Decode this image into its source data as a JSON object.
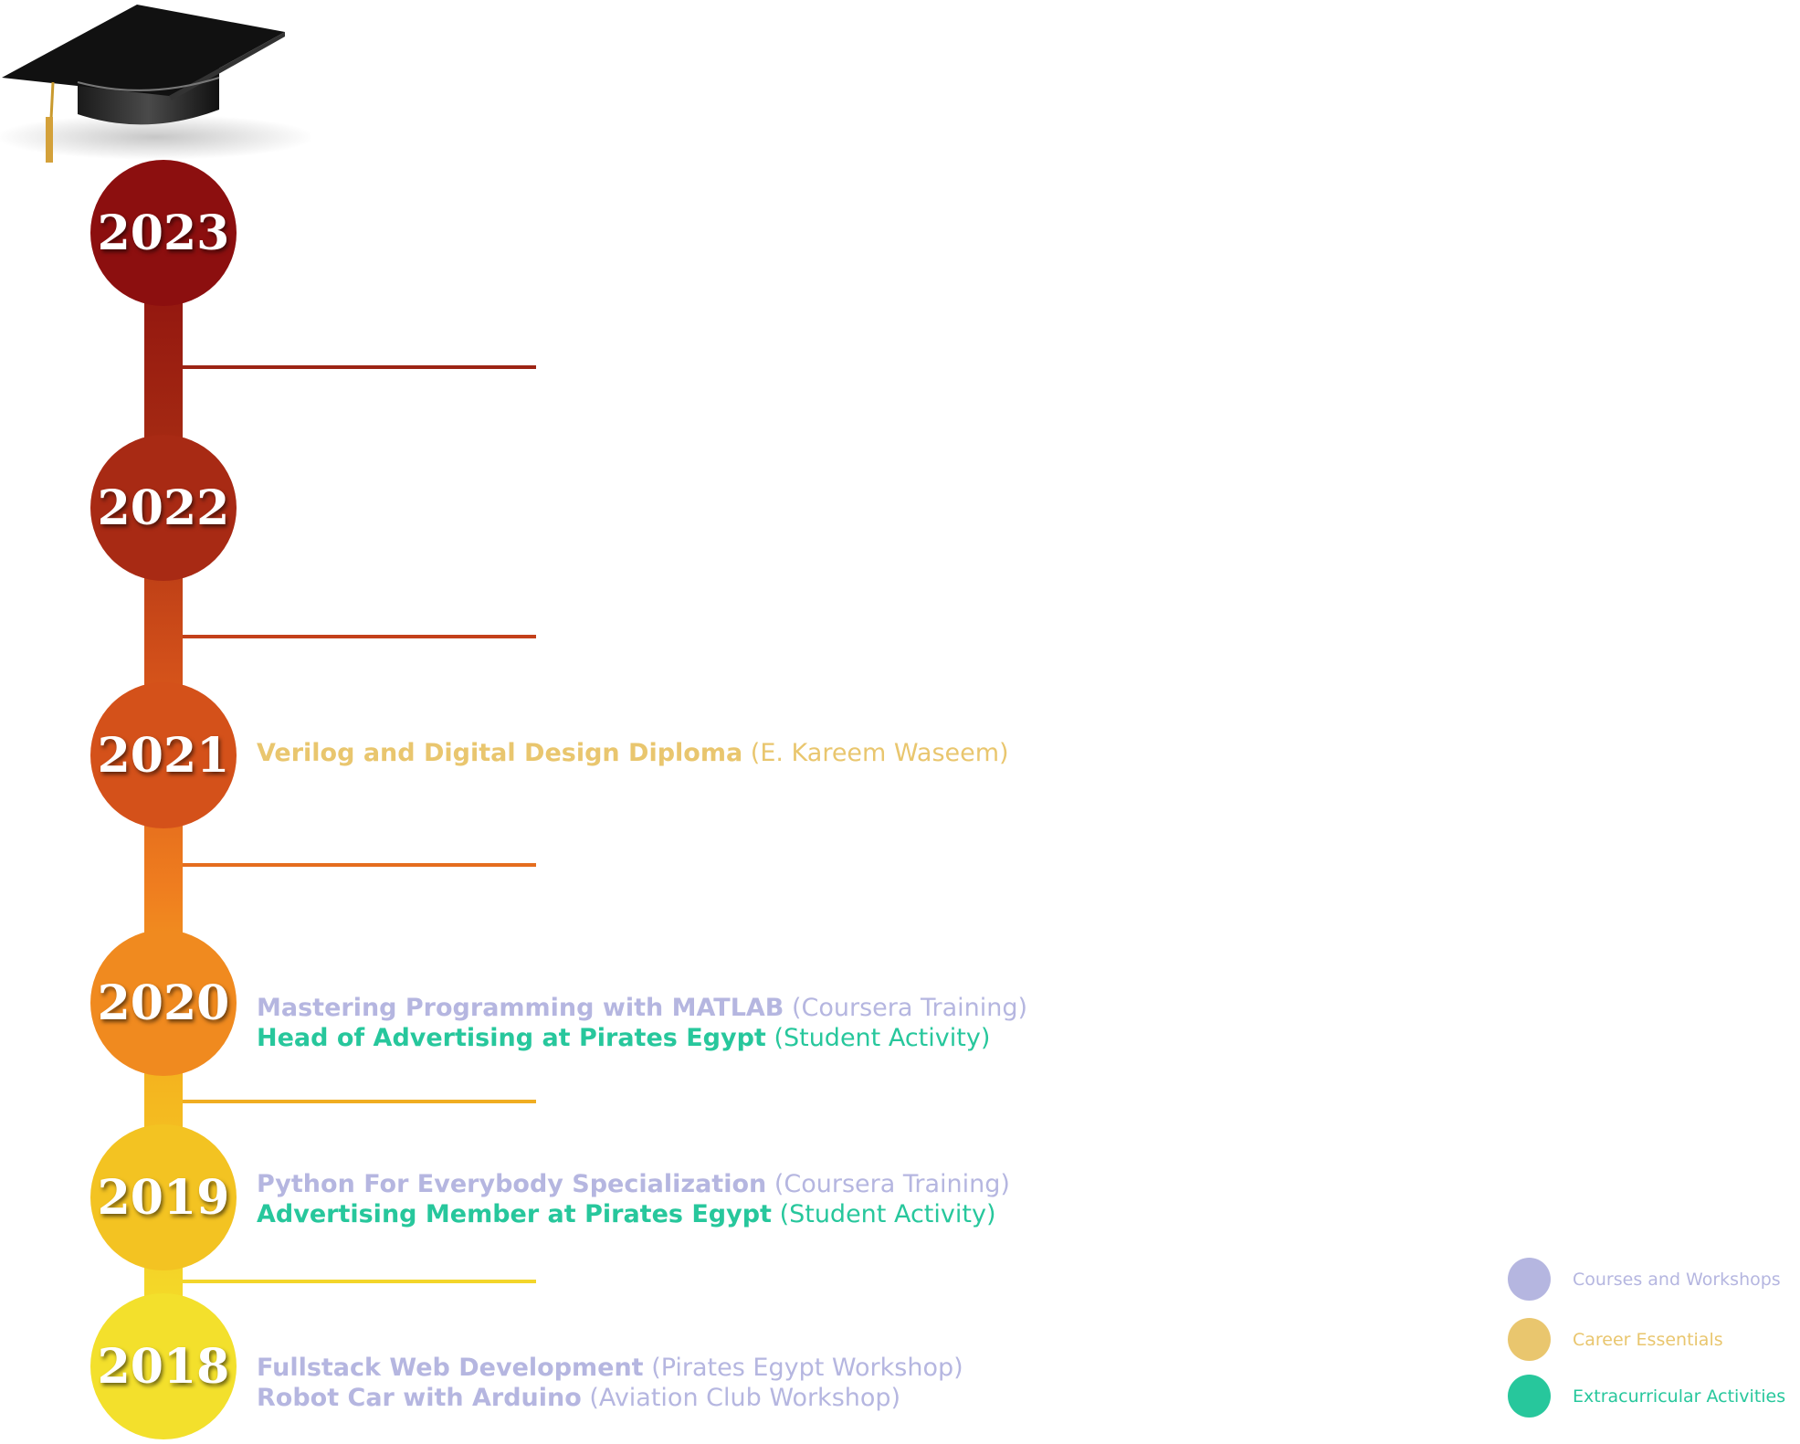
{
  "timeline": [
    {
      "year": "2023",
      "entries": []
    },
    {
      "year": "2022",
      "entries": []
    },
    {
      "year": "2021",
      "entries": [
        {
          "category": "career",
          "title": "Verilog and Digital Design Diploma",
          "source": "(E. Kareem Waseem)"
        }
      ]
    },
    {
      "year": "2020",
      "entries": [
        {
          "category": "courses",
          "title": "Mastering Programming with MATLAB",
          "source": "(Coursera Training)"
        },
        {
          "category": "extra",
          "title": "Head of Advertising at Pirates Egypt",
          "source": "(Student Activity)"
        }
      ]
    },
    {
      "year": "2019",
      "entries": [
        {
          "category": "courses",
          "title": "Python For Everybody Specialization",
          "source": "(Coursera Training)"
        },
        {
          "category": "extra",
          "title": "Advertising Member at Pirates Egypt",
          "source": "(Student Activity)"
        }
      ]
    },
    {
      "year": "2018",
      "entries": [
        {
          "category": "courses",
          "title": "Fullstack Web Development",
          "source": "(Pirates Egypt Workshop)"
        },
        {
          "category": "courses",
          "title": "Robot Car with Arduino",
          "source": "(Aviation Club Workshop)"
        }
      ]
    }
  ],
  "legend": [
    {
      "label": "Courses and Workshops",
      "color": "#b5b6e0"
    },
    {
      "label": "Career Essentials",
      "color": "#e9c66e"
    },
    {
      "label": "Extracurricular Activities",
      "color": "#27c79c"
    }
  ],
  "colors": {
    "year_2023": "#8c0f0f",
    "year_2022": "#a82a14",
    "year_2021": "#d4511a",
    "year_2020": "#f08a1f",
    "year_2019": "#f3c322",
    "year_2018": "#f3e02c"
  },
  "icons": {
    "top": "graduation-cap-icon"
  }
}
